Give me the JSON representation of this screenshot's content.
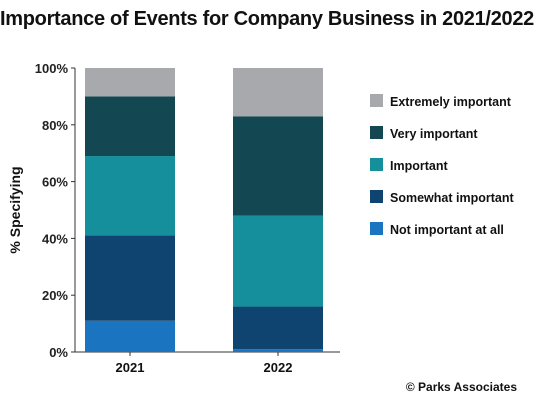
{
  "chart_data": {
    "type": "bar",
    "stacked": true,
    "title": "Importance of Events for Company Business in 2021/2022",
    "ylabel": "% Specifying",
    "xlabel": "",
    "categories": [
      "2021",
      "2022"
    ],
    "ylim": [
      0,
      100
    ],
    "yticks": [
      "0%",
      "20%",
      "40%",
      "60%",
      "80%",
      "100%"
    ],
    "grid": false,
    "legend_position": "right",
    "series": [
      {
        "name": "Not important at all",
        "values": [
          11,
          1
        ],
        "color": "#1a74bf"
      },
      {
        "name": "Somewhat important",
        "values": [
          30,
          15
        ],
        "color": "#0f4370"
      },
      {
        "name": "Important",
        "values": [
          28,
          32
        ],
        "color": "#168f9c"
      },
      {
        "name": "Very important",
        "values": [
          21,
          35
        ],
        "color": "#134752"
      },
      {
        "name": "Extremely important",
        "values": [
          10,
          17
        ],
        "color": "#a8a9ad"
      }
    ]
  },
  "footer": {
    "source": "© Parks Associates"
  }
}
